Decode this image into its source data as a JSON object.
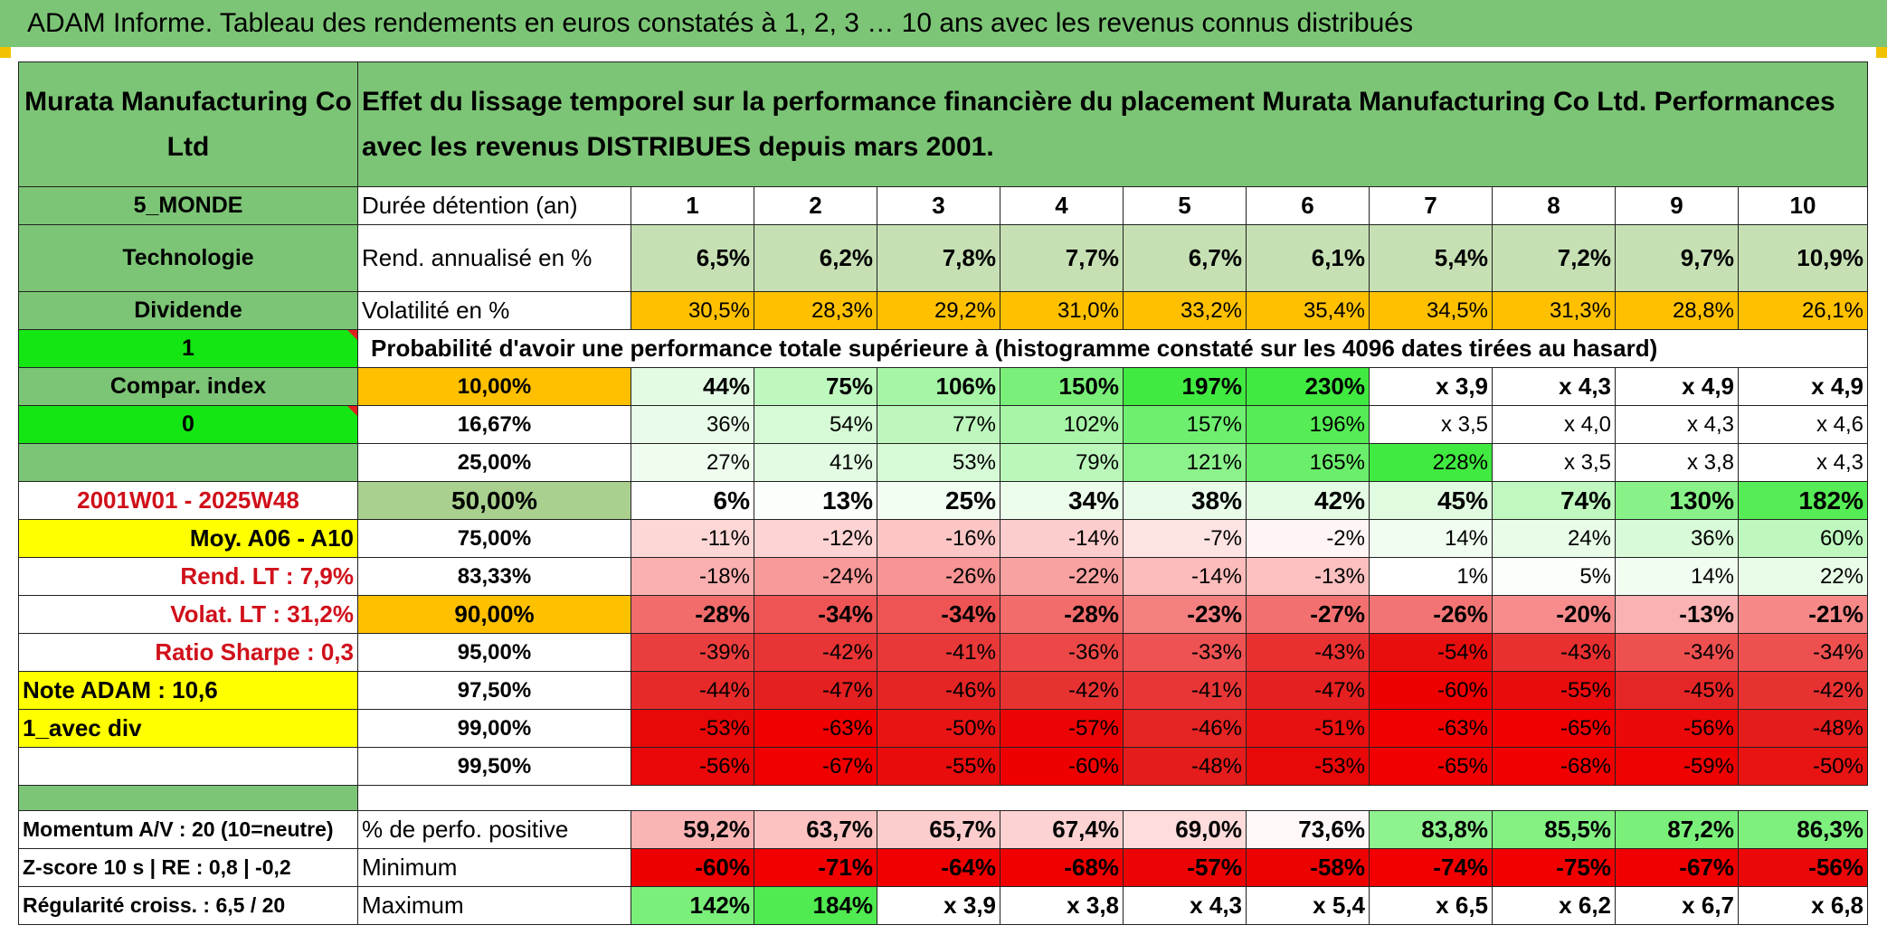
{
  "title": "ADAM Informe. Tableau des rendements en euros constatés à 1, 2, 3 … 10 ans avec les revenus connus distribués",
  "header": {
    "fund_name": "Murata Manufacturing Co Ltd",
    "description": "Effet du lissage temporel sur la performance financière du placement Murata Manufacturing Co Ltd. Performances avec les revenus DISTRIBUES depuis mars 2001."
  },
  "left": {
    "zone": "5_MONDE",
    "sector": "Technologie",
    "dividend": "Dividende",
    "flag1": "1",
    "compar": "Compar. index",
    "flag0": "0",
    "period": "2001W01 - 2025W48",
    "moy": "Moy. A06 - A10",
    "rend": "Rend. LT :   7,9%",
    "volat": "Volat. LT :   31,2%",
    "sharpe": "Ratio Sharpe :   0,3",
    "note": "Note ADAM : 10,6",
    "avec_div": "1_avec div",
    "momentum": "Momentum A/V : 20 (10=neutre)",
    "zscore": "Z-score 10 s | RE : 0,8 | -0,2",
    "regularite": "Régularité croiss. : 6,5 / 20"
  },
  "years_label": "Durée détention (an)",
  "years": [
    "1",
    "2",
    "3",
    "4",
    "5",
    "6",
    "7",
    "8",
    "9",
    "10"
  ],
  "rend": {
    "label": "Rend. annualisé en %",
    "values": [
      "6,5%",
      "6,2%",
      "7,8%",
      "7,7%",
      "6,7%",
      "6,1%",
      "5,4%",
      "7,2%",
      "9,7%",
      "10,9%"
    ]
  },
  "vol": {
    "label": "Volatilité en %",
    "values": [
      "30,5%",
      "28,3%",
      "29,2%",
      "31,0%",
      "33,2%",
      "35,4%",
      "34,5%",
      "31,3%",
      "28,8%",
      "26,1%"
    ]
  },
  "prob_title": "Probabilité d'avoir une performance totale supérieure à (histogramme constaté sur les 4096 dates tirées au hasard)",
  "quantiles": [
    {
      "p": "10,00%",
      "values": [
        "44%",
        "75%",
        "106%",
        "150%",
        "197%",
        "230%",
        "x 3,9",
        "x 4,3",
        "x 4,9",
        "x 4,9"
      ],
      "colors": [
        "#e2fbe2",
        "#bff8bf",
        "#a6f5a6",
        "#7af07a",
        "#40ea40",
        "#40ea40",
        "#ffffff",
        "#ffffff",
        "#ffffff",
        "#ffffff"
      ]
    },
    {
      "p": "16,67%",
      "values": [
        "36%",
        "54%",
        "77%",
        "102%",
        "157%",
        "196%",
        "x 3,5",
        "x 4,0",
        "x 4,3",
        "x 4,6"
      ],
      "colors": [
        "#e9fce9",
        "#d6fad6",
        "#bdf7bd",
        "#a8f5a8",
        "#6fef6f",
        "#55ec55",
        "#ffffff",
        "#ffffff",
        "#ffffff",
        "#ffffff"
      ]
    },
    {
      "p": "25,00%",
      "values": [
        "27%",
        "41%",
        "53%",
        "79%",
        "121%",
        "165%",
        "228%",
        "x 3,5",
        "x 3,8",
        "x 4,3"
      ],
      "colors": [
        "#effdef",
        "#e2fbe2",
        "#d6fad6",
        "#bbf7bb",
        "#8cf28c",
        "#6bee6b",
        "#40ea40",
        "#ffffff",
        "#ffffff",
        "#ffffff"
      ]
    },
    {
      "p": "50,00%",
      "values": [
        "6%",
        "13%",
        "25%",
        "34%",
        "38%",
        "42%",
        "45%",
        "74%",
        "130%",
        "182%"
      ],
      "colors": [
        "#ffffff",
        "#fbfffb",
        "#f3fef3",
        "#ecfdec",
        "#e9fce9",
        "#e4fbe4",
        "#e0fbe0",
        "#c0f8c0",
        "#88f288",
        "#55ec55"
      ]
    },
    {
      "p": "75,00%",
      "values": [
        "-11%",
        "-12%",
        "-16%",
        "-14%",
        "-7%",
        "-2%",
        "14%",
        "24%",
        "36%",
        "60%"
      ],
      "colors": [
        "#fdd6d6",
        "#fdd3d3",
        "#fcc6c6",
        "#fdcdcd",
        "#fee3e3",
        "#fff5f5",
        "#f1fdf1",
        "#e8fce8",
        "#d8fad8",
        "#bff8bf"
      ]
    },
    {
      "p": "83,33%",
      "values": [
        "-18%",
        "-24%",
        "-26%",
        "-22%",
        "-14%",
        "-13%",
        "1%",
        "5%",
        "14%",
        "22%"
      ],
      "colors": [
        "#fbb0b0",
        "#f99a9a",
        "#f89494",
        "#f9a2a2",
        "#fcbcbc",
        "#fcc0c0",
        "#ffffff",
        "#fafffa",
        "#f1fdf1",
        "#e8fce8"
      ]
    },
    {
      "p": "90,00%",
      "values": [
        "-28%",
        "-34%",
        "-34%",
        "-28%",
        "-23%",
        "-27%",
        "-26%",
        "-20%",
        "-13%",
        "-21%"
      ],
      "colors": [
        "#f26c6c",
        "#ee5454",
        "#ee5454",
        "#f26c6c",
        "#f48080",
        "#f27070",
        "#f37474",
        "#f68c8c",
        "#fbb2b2",
        "#f68888"
      ]
    },
    {
      "p": "95,00%",
      "values": [
        "-39%",
        "-42%",
        "-41%",
        "-36%",
        "-33%",
        "-43%",
        "-54%",
        "-43%",
        "-34%",
        "-34%"
      ],
      "colors": [
        "#ea3e3e",
        "#e83434",
        "#e93838",
        "#ec4848",
        "#ee5252",
        "#e83030",
        "#e80e0e",
        "#e83030",
        "#ee5050",
        "#ee5050"
      ]
    },
    {
      "p": "97,50%",
      "values": [
        "-44%",
        "-47%",
        "-46%",
        "-42%",
        "-41%",
        "-47%",
        "-60%",
        "-55%",
        "-45%",
        "-42%"
      ],
      "colors": [
        "#e62a2a",
        "#e42020",
        "#e52424",
        "#e73232",
        "#e83636",
        "#e42020",
        "#ef0000",
        "#e80c0c",
        "#e52626",
        "#e73232"
      ]
    },
    {
      "p": "99,00%",
      "values": [
        "-53%",
        "-63%",
        "-50%",
        "-57%",
        "-46%",
        "-51%",
        "-63%",
        "-65%",
        "-56%",
        "-48%"
      ],
      "colors": [
        "#e80808",
        "#f00000",
        "#e81414",
        "#ec0404",
        "#e52424",
        "#e81010",
        "#f00000",
        "#f00000",
        "#ea0808",
        "#e41c1c"
      ]
    },
    {
      "p": "99,50%",
      "values": [
        "-56%",
        "-67%",
        "-55%",
        "-60%",
        "-48%",
        "-53%",
        "-65%",
        "-68%",
        "-59%",
        "-50%"
      ],
      "colors": [
        "#ea0808",
        "#f00000",
        "#e80c0c",
        "#ef0000",
        "#e41c1c",
        "#e80808",
        "#f00000",
        "#f00000",
        "#ee0202",
        "#e81414"
      ]
    }
  ],
  "positive": {
    "label": "% de perfo. positive",
    "values": [
      "59,2%",
      "63,7%",
      "65,7%",
      "67,4%",
      "69,0%",
      "73,6%",
      "83,8%",
      "85,5%",
      "87,2%",
      "86,3%"
    ],
    "colors": [
      "#fbb4b4",
      "#fcc2c2",
      "#fdcccc",
      "#fdd2d2",
      "#fedcdc",
      "#fff8f8",
      "#8ef28e",
      "#82f182",
      "#7af07a",
      "#7ef07e"
    ]
  },
  "minimum": {
    "label": "Minimum",
    "values": [
      "-60%",
      "-71%",
      "-64%",
      "-68%",
      "-57%",
      "-58%",
      "-74%",
      "-75%",
      "-67%",
      "-56%"
    ],
    "colors": [
      "#ef0000",
      "#f20000",
      "#f00000",
      "#f10000",
      "#ec0404",
      "#ed0202",
      "#f20000",
      "#f20000",
      "#f00000",
      "#ea0808"
    ]
  },
  "maximum": {
    "label": "Maximum",
    "values": [
      "142%",
      "184%",
      "x 3,9",
      "x 3,8",
      "x 4,3",
      "x 5,4",
      "x 6,5",
      "x 6,2",
      "x 6,7",
      "x 6,8"
    ],
    "colors": [
      "#7af07a",
      "#50eb50",
      "#ffffff",
      "#ffffff",
      "#ffffff",
      "#ffffff",
      "#ffffff",
      "#ffffff",
      "#ffffff",
      "#ffffff"
    ]
  },
  "colors": {
    "title_green": "#7cc576",
    "rend_green": "#c6e0b4",
    "vol_orange": "#ffc000",
    "bright_green": "#14e614",
    "yellow": "#ffff00",
    "label_red": "#d0101a"
  }
}
